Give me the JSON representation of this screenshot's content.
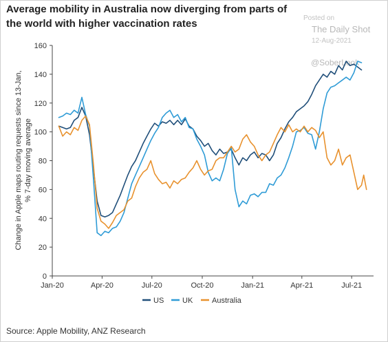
{
  "header": {
    "title": "Average mobility in Australia now diverging from parts of the world with higher vaccination rates"
  },
  "watermark": {
    "posted_on": "Posted on",
    "site": "The Daily Shot",
    "date": "12-Aug-2021",
    "handle": "@SoberLook"
  },
  "footer": {
    "source": "Source: Apple Mobility, ANZ Research"
  },
  "colors": {
    "US": "#1f4e79",
    "UK": "#2e9bd6",
    "Australia": "#e8912d",
    "axis": "#444444",
    "text": "#333333"
  },
  "chart_data": {
    "type": "line",
    "ylabel_line1": "Change in Apple maps routing requests since 13-Jan,",
    "ylabel_line2": "% 7-day moving average",
    "ylim": [
      0,
      160
    ],
    "yticks": [
      0,
      20,
      40,
      60,
      80,
      100,
      120,
      140,
      160
    ],
    "xlim": [
      "2020-01-01",
      "2021-08-10"
    ],
    "xticks": [
      {
        "date": "2020-01-01",
        "label": "Jan-20"
      },
      {
        "date": "2020-04-01",
        "label": "Apr-20"
      },
      {
        "date": "2020-07-01",
        "label": "Jul-20"
      },
      {
        "date": "2020-10-01",
        "label": "Oct-20"
      },
      {
        "date": "2021-01-01",
        "label": "Jan-21"
      },
      {
        "date": "2021-04-01",
        "label": "Apr-21"
      },
      {
        "date": "2021-07-01",
        "label": "Jul-21"
      }
    ],
    "grid": false,
    "legend_position": "bottom",
    "series": [
      {
        "name": "US",
        "points": [
          [
            "2020-01-13",
            104
          ],
          [
            "2020-01-20",
            103
          ],
          [
            "2020-01-27",
            102
          ],
          [
            "2020-02-03",
            103
          ],
          [
            "2020-02-10",
            108
          ],
          [
            "2020-02-17",
            110
          ],
          [
            "2020-02-24",
            117
          ],
          [
            "2020-03-02",
            111
          ],
          [
            "2020-03-09",
            98
          ],
          [
            "2020-03-16",
            75
          ],
          [
            "2020-03-23",
            52
          ],
          [
            "2020-03-30",
            42
          ],
          [
            "2020-04-06",
            41
          ],
          [
            "2020-04-13",
            42
          ],
          [
            "2020-04-20",
            44
          ],
          [
            "2020-04-27",
            50
          ],
          [
            "2020-05-04",
            56
          ],
          [
            "2020-05-11",
            63
          ],
          [
            "2020-05-18",
            70
          ],
          [
            "2020-05-25",
            76
          ],
          [
            "2020-06-01",
            80
          ],
          [
            "2020-06-08",
            86
          ],
          [
            "2020-06-15",
            92
          ],
          [
            "2020-06-22",
            97
          ],
          [
            "2020-06-29",
            102
          ],
          [
            "2020-07-06",
            106
          ],
          [
            "2020-07-13",
            104
          ],
          [
            "2020-07-20",
            107
          ],
          [
            "2020-07-27",
            106
          ],
          [
            "2020-08-03",
            108
          ],
          [
            "2020-08-10",
            105
          ],
          [
            "2020-08-17",
            108
          ],
          [
            "2020-08-24",
            105
          ],
          [
            "2020-08-31",
            109
          ],
          [
            "2020-09-07",
            104
          ],
          [
            "2020-09-14",
            102
          ],
          [
            "2020-09-21",
            97
          ],
          [
            "2020-09-28",
            94
          ],
          [
            "2020-10-05",
            90
          ],
          [
            "2020-10-12",
            92
          ],
          [
            "2020-10-19",
            87
          ],
          [
            "2020-10-26",
            84
          ],
          [
            "2020-11-02",
            88
          ],
          [
            "2020-11-09",
            85
          ],
          [
            "2020-11-16",
            86
          ],
          [
            "2020-11-23",
            88
          ],
          [
            "2020-11-30",
            82
          ],
          [
            "2020-12-07",
            77
          ],
          [
            "2020-12-14",
            82
          ],
          [
            "2020-12-21",
            80
          ],
          [
            "2020-12-28",
            84
          ],
          [
            "2021-01-04",
            86
          ],
          [
            "2021-01-11",
            82
          ],
          [
            "2021-01-18",
            85
          ],
          [
            "2021-01-25",
            84
          ],
          [
            "2021-02-01",
            80
          ],
          [
            "2021-02-08",
            84
          ],
          [
            "2021-02-15",
            92
          ],
          [
            "2021-02-22",
            96
          ],
          [
            "2021-03-01",
            102
          ],
          [
            "2021-03-08",
            107
          ],
          [
            "2021-03-15",
            110
          ],
          [
            "2021-03-22",
            114
          ],
          [
            "2021-03-29",
            116
          ],
          [
            "2021-04-05",
            118
          ],
          [
            "2021-04-12",
            121
          ],
          [
            "2021-04-19",
            126
          ],
          [
            "2021-04-26",
            132
          ],
          [
            "2021-05-03",
            136
          ],
          [
            "2021-05-10",
            140
          ],
          [
            "2021-05-17",
            138
          ],
          [
            "2021-05-24",
            142
          ],
          [
            "2021-05-31",
            140
          ],
          [
            "2021-06-07",
            146
          ],
          [
            "2021-06-14",
            143
          ],
          [
            "2021-06-21",
            149
          ],
          [
            "2021-06-28",
            146
          ],
          [
            "2021-07-05",
            147
          ],
          [
            "2021-07-12",
            145
          ],
          [
            "2021-07-19",
            143
          ]
        ]
      },
      {
        "name": "UK",
        "points": [
          [
            "2020-01-13",
            110
          ],
          [
            "2020-01-20",
            111
          ],
          [
            "2020-01-27",
            113
          ],
          [
            "2020-02-03",
            112
          ],
          [
            "2020-02-10",
            115
          ],
          [
            "2020-02-17",
            113
          ],
          [
            "2020-02-24",
            124
          ],
          [
            "2020-03-02",
            112
          ],
          [
            "2020-03-09",
            104
          ],
          [
            "2020-03-16",
            68
          ],
          [
            "2020-03-23",
            30
          ],
          [
            "2020-03-30",
            28
          ],
          [
            "2020-04-06",
            31
          ],
          [
            "2020-04-13",
            30
          ],
          [
            "2020-04-20",
            33
          ],
          [
            "2020-04-27",
            34
          ],
          [
            "2020-05-04",
            38
          ],
          [
            "2020-05-11",
            44
          ],
          [
            "2020-05-18",
            54
          ],
          [
            "2020-05-25",
            64
          ],
          [
            "2020-06-01",
            70
          ],
          [
            "2020-06-08",
            76
          ],
          [
            "2020-06-15",
            82
          ],
          [
            "2020-06-22",
            88
          ],
          [
            "2020-06-29",
            94
          ],
          [
            "2020-07-06",
            99
          ],
          [
            "2020-07-13",
            103
          ],
          [
            "2020-07-20",
            110
          ],
          [
            "2020-07-27",
            113
          ],
          [
            "2020-08-03",
            115
          ],
          [
            "2020-08-10",
            110
          ],
          [
            "2020-08-17",
            112
          ],
          [
            "2020-08-24",
            107
          ],
          [
            "2020-08-31",
            110
          ],
          [
            "2020-09-07",
            103
          ],
          [
            "2020-09-14",
            102
          ],
          [
            "2020-09-21",
            95
          ],
          [
            "2020-09-28",
            90
          ],
          [
            "2020-10-05",
            84
          ],
          [
            "2020-10-12",
            72
          ],
          [
            "2020-10-19",
            66
          ],
          [
            "2020-10-26",
            68
          ],
          [
            "2020-11-02",
            66
          ],
          [
            "2020-11-09",
            74
          ],
          [
            "2020-11-16",
            85
          ],
          [
            "2020-11-23",
            89
          ],
          [
            "2020-11-30",
            60
          ],
          [
            "2020-12-07",
            48
          ],
          [
            "2020-12-14",
            52
          ],
          [
            "2020-12-21",
            50
          ],
          [
            "2020-12-28",
            56
          ],
          [
            "2021-01-04",
            57
          ],
          [
            "2021-01-11",
            55
          ],
          [
            "2021-01-18",
            58
          ],
          [
            "2021-01-25",
            58
          ],
          [
            "2021-02-01",
            64
          ],
          [
            "2021-02-08",
            63
          ],
          [
            "2021-02-15",
            68
          ],
          [
            "2021-02-22",
            70
          ],
          [
            "2021-03-01",
            75
          ],
          [
            "2021-03-08",
            82
          ],
          [
            "2021-03-15",
            90
          ],
          [
            "2021-03-22",
            100
          ],
          [
            "2021-03-29",
            101
          ],
          [
            "2021-04-05",
            103
          ],
          [
            "2021-04-12",
            99
          ],
          [
            "2021-04-19",
            98
          ],
          [
            "2021-04-26",
            88
          ],
          [
            "2021-05-03",
            100
          ],
          [
            "2021-05-10",
            116
          ],
          [
            "2021-05-17",
            127
          ],
          [
            "2021-05-24",
            131
          ],
          [
            "2021-05-31",
            132
          ],
          [
            "2021-06-07",
            134
          ],
          [
            "2021-06-14",
            136
          ],
          [
            "2021-06-21",
            138
          ],
          [
            "2021-06-28",
            136
          ],
          [
            "2021-07-05",
            141
          ],
          [
            "2021-07-12",
            149
          ],
          [
            "2021-07-19",
            148
          ]
        ]
      },
      {
        "name": "Australia",
        "points": [
          [
            "2020-01-13",
            104
          ],
          [
            "2020-01-20",
            97
          ],
          [
            "2020-01-27",
            100
          ],
          [
            "2020-02-03",
            98
          ],
          [
            "2020-02-10",
            103
          ],
          [
            "2020-02-17",
            101
          ],
          [
            "2020-02-24",
            108
          ],
          [
            "2020-03-02",
            111
          ],
          [
            "2020-03-09",
            105
          ],
          [
            "2020-03-16",
            78
          ],
          [
            "2020-03-23",
            47
          ],
          [
            "2020-03-30",
            38
          ],
          [
            "2020-04-06",
            36
          ],
          [
            "2020-04-13",
            33
          ],
          [
            "2020-04-20",
            37
          ],
          [
            "2020-04-27",
            42
          ],
          [
            "2020-05-04",
            44
          ],
          [
            "2020-05-11",
            46
          ],
          [
            "2020-05-18",
            52
          ],
          [
            "2020-05-25",
            54
          ],
          [
            "2020-06-01",
            62
          ],
          [
            "2020-06-08",
            68
          ],
          [
            "2020-06-15",
            72
          ],
          [
            "2020-06-22",
            74
          ],
          [
            "2020-06-29",
            80
          ],
          [
            "2020-07-06",
            71
          ],
          [
            "2020-07-13",
            67
          ],
          [
            "2020-07-20",
            64
          ],
          [
            "2020-07-27",
            65
          ],
          [
            "2020-08-03",
            61
          ],
          [
            "2020-08-10",
            66
          ],
          [
            "2020-08-17",
            64
          ],
          [
            "2020-08-24",
            67
          ],
          [
            "2020-08-31",
            68
          ],
          [
            "2020-09-07",
            72
          ],
          [
            "2020-09-14",
            75
          ],
          [
            "2020-09-21",
            80
          ],
          [
            "2020-09-28",
            74
          ],
          [
            "2020-10-05",
            70
          ],
          [
            "2020-10-12",
            73
          ],
          [
            "2020-10-19",
            74
          ],
          [
            "2020-10-26",
            80
          ],
          [
            "2020-11-02",
            82
          ],
          [
            "2020-11-09",
            82
          ],
          [
            "2020-11-16",
            86
          ],
          [
            "2020-11-23",
            90
          ],
          [
            "2020-11-30",
            86
          ],
          [
            "2020-12-07",
            88
          ],
          [
            "2020-12-14",
            95
          ],
          [
            "2020-12-21",
            98
          ],
          [
            "2020-12-28",
            93
          ],
          [
            "2021-01-04",
            90
          ],
          [
            "2021-01-11",
            84
          ],
          [
            "2021-01-18",
            80
          ],
          [
            "2021-01-25",
            84
          ],
          [
            "2021-02-01",
            86
          ],
          [
            "2021-02-08",
            92
          ],
          [
            "2021-02-15",
            98
          ],
          [
            "2021-02-22",
            103
          ],
          [
            "2021-03-01",
            100
          ],
          [
            "2021-03-08",
            105
          ],
          [
            "2021-03-15",
            100
          ],
          [
            "2021-03-22",
            102
          ],
          [
            "2021-03-29",
            100
          ],
          [
            "2021-04-05",
            104
          ],
          [
            "2021-04-12",
            100
          ],
          [
            "2021-04-19",
            103
          ],
          [
            "2021-04-26",
            101
          ],
          [
            "2021-05-03",
            96
          ],
          [
            "2021-05-10",
            100
          ],
          [
            "2021-05-17",
            82
          ],
          [
            "2021-05-24",
            77
          ],
          [
            "2021-05-31",
            80
          ],
          [
            "2021-06-07",
            88
          ],
          [
            "2021-06-14",
            77
          ],
          [
            "2021-06-21",
            82
          ],
          [
            "2021-06-28",
            84
          ],
          [
            "2021-07-05",
            72
          ],
          [
            "2021-07-12",
            60
          ],
          [
            "2021-07-19",
            63
          ],
          [
            "2021-07-23",
            70
          ],
          [
            "2021-07-28",
            60
          ]
        ]
      }
    ]
  }
}
